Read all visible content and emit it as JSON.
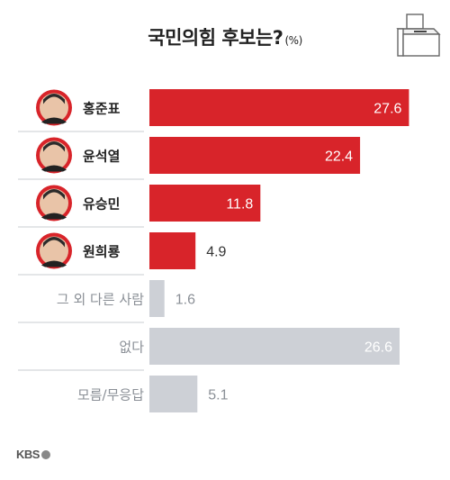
{
  "title": "국민의힘 후보는?",
  "unit": "(%)",
  "logo": "KBS",
  "colors": {
    "red": "#d8242a",
    "gray": "#cdd0d6",
    "candidate_text": "#222222",
    "other_text": "#8a8f96",
    "divider": "#c9ccd1"
  },
  "chart_data": {
    "type": "bar",
    "orientation": "horizontal",
    "title": "국민의힘 후보는?",
    "unit": "(%)",
    "categories": [
      "홍준표",
      "윤석열",
      "유승민",
      "원희룡",
      "그 외 다른 사람",
      "없다",
      "모름/무응답"
    ],
    "values": [
      27.6,
      22.4,
      11.8,
      4.9,
      1.6,
      26.6,
      5.1
    ],
    "value_labels": [
      "27.6",
      "22.4",
      "11.8",
      "4.9",
      "1.6",
      "26.6",
      "5.1"
    ],
    "highlight": [
      true,
      true,
      true,
      true,
      false,
      false,
      false
    ],
    "xlim": [
      0,
      30
    ],
    "grid": false
  }
}
